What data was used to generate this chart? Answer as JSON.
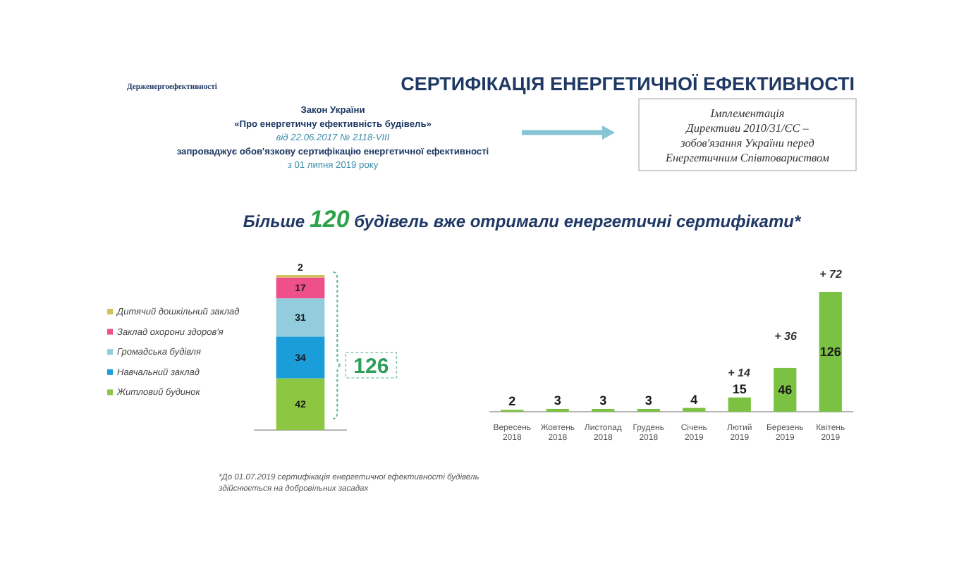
{
  "chart_data": [
    {
      "type": "bar",
      "subtitle": "Більше 120 будівель вже отримали енергетичні сертифікати*",
      "stacked": true,
      "categories": [
        null
      ],
      "series": [
        {
          "name": "Житловий будинок",
          "color": "#8dc641",
          "values": [
            42
          ]
        },
        {
          "name": "Навчальний заклад",
          "color": "#1b9dd9",
          "values": [
            34
          ]
        },
        {
          "name": "Громадська будівля",
          "color": "#93cddd",
          "values": [
            31
          ]
        },
        {
          "name": "Заклад охорони здоров'я",
          "color": "#f0508a",
          "values": [
            17
          ]
        },
        {
          "name": "Дитячий дошкільний заклад",
          "color": "#cfc35a",
          "values": [
            2
          ]
        }
      ],
      "legend": "left",
      "data_labels": true,
      "totals": [
        "126"
      ],
      "tick_labels": false,
      "annotations": [
        "Держенергоефективності",
        "Закон України\n«Про енергетичну ефективність будівель»\nвід 22.06.2017 № 2118-VIII\nзапроваджує обов'язкову сертифікацію енергетичної ефективності\nз 01 липня 2019 року",
        "Імплементація\nДирективи 2010/31/ЄС –\nзобов'язання України перед\nЕнергетичним Співтовариством",
        "*До 01.07.2019 сертифікація енергетичної ефективності будівель здійснюється на добровільних засадах"
      ]
    },
    {
      "type": "bar",
      "title": "СЕРТИФІКАЦІЯ ЕНЕРГЕТИЧНОЇ ЕФЕКТИВНОСТІ",
      "categories": [
        "Вересень 2018",
        "Жовтень 2018",
        "Листопад 2018",
        "Грудень 2018",
        "Січень 2019",
        "Лютий 2019",
        "Березень 2019",
        "Квітень 2019"
      ],
      "values": [
        2,
        3,
        3,
        3,
        4,
        15,
        46,
        126
      ],
      "color": "#7cc242",
      "data_labels": true,
      "tick_labels": "x",
      "annotations": [
        "+ 14",
        "+ 36",
        "+ 72"
      ]
    }
  ]
}
